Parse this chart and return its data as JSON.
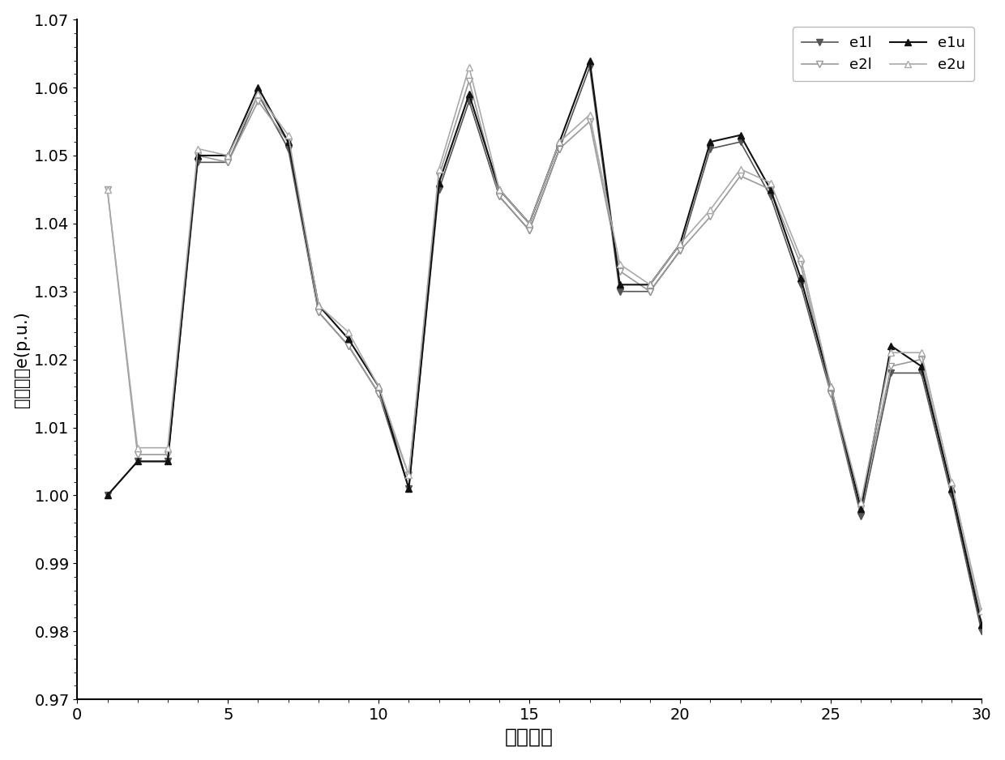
{
  "title": "",
  "xlabel": "节点编号",
  "ylabel": "电压实部e(p.u.)",
  "xlim": [
    0,
    30
  ],
  "ylim": [
    0.97,
    1.07
  ],
  "yticks": [
    0.97,
    0.98,
    0.99,
    1.0,
    1.01,
    1.02,
    1.03,
    1.04,
    1.05,
    1.06,
    1.07
  ],
  "xticks": [
    0,
    5,
    10,
    15,
    20,
    25,
    30
  ],
  "series": {
    "e1l": {
      "x": [
        1,
        2,
        3,
        4,
        5,
        6,
        7,
        8,
        9,
        10,
        11,
        12,
        13,
        14,
        15,
        16,
        17,
        18,
        19,
        20,
        21,
        22,
        23,
        24,
        25,
        26,
        27,
        28,
        29,
        30
      ],
      "y": [
        1.0,
        1.005,
        1.005,
        1.049,
        1.049,
        1.059,
        1.051,
        1.027,
        1.022,
        1.015,
        1.001,
        1.045,
        1.058,
        1.044,
        1.039,
        1.051,
        1.063,
        1.03,
        1.03,
        1.036,
        1.051,
        1.052,
        1.044,
        1.031,
        1.015,
        0.997,
        1.018,
        1.018,
        1.0,
        0.98
      ],
      "color": "#555555",
      "marker": "v",
      "markersize": 6,
      "filled": true,
      "linewidth": 1.2
    },
    "e2l": {
      "x": [
        1,
        2,
        3,
        4,
        5,
        6,
        7,
        8,
        9,
        10,
        11,
        12,
        13,
        14,
        15,
        16,
        17,
        18,
        19,
        20,
        21,
        22,
        23,
        24,
        25,
        26,
        27,
        28,
        29,
        30
      ],
      "y": [
        1.045,
        1.006,
        1.006,
        1.05,
        1.049,
        1.058,
        1.052,
        1.027,
        1.022,
        1.015,
        1.003,
        1.047,
        1.061,
        1.044,
        1.039,
        1.051,
        1.055,
        1.033,
        1.03,
        1.036,
        1.041,
        1.047,
        1.045,
        1.034,
        1.015,
        0.998,
        1.019,
        1.02,
        1.001,
        0.982
      ],
      "color": "#999999",
      "marker": "v",
      "markersize": 6,
      "filled": false,
      "linewidth": 1.2
    },
    "e1u": {
      "x": [
        1,
        2,
        3,
        4,
        5,
        6,
        7,
        8,
        9,
        10,
        11,
        12,
        13,
        14,
        15,
        16,
        17,
        18,
        19,
        20,
        21,
        22,
        23,
        24,
        25,
        26,
        27,
        28,
        29,
        30
      ],
      "y": [
        1.0,
        1.005,
        1.005,
        1.05,
        1.05,
        1.06,
        1.052,
        1.028,
        1.023,
        1.016,
        1.001,
        1.046,
        1.059,
        1.045,
        1.04,
        1.052,
        1.064,
        1.031,
        1.031,
        1.037,
        1.052,
        1.053,
        1.045,
        1.032,
        1.016,
        0.998,
        1.022,
        1.019,
        1.001,
        0.981
      ],
      "color": "#111111",
      "marker": "^",
      "markersize": 6,
      "filled": true,
      "linewidth": 1.5
    },
    "e2u": {
      "x": [
        1,
        2,
        3,
        4,
        5,
        6,
        7,
        8,
        9,
        10,
        11,
        12,
        13,
        14,
        15,
        16,
        17,
        18,
        19,
        20,
        21,
        22,
        23,
        24,
        25,
        26,
        27,
        28,
        29,
        30
      ],
      "y": [
        1.045,
        1.007,
        1.007,
        1.051,
        1.05,
        1.059,
        1.053,
        1.028,
        1.024,
        1.016,
        1.003,
        1.048,
        1.063,
        1.045,
        1.04,
        1.052,
        1.056,
        1.034,
        1.031,
        1.037,
        1.042,
        1.048,
        1.046,
        1.035,
        1.016,
        0.999,
        1.021,
        1.021,
        1.002,
        0.983
      ],
      "color": "#aaaaaa",
      "marker": "^",
      "markersize": 6,
      "filled": false,
      "linewidth": 1.2
    }
  },
  "legend_loc": "upper right",
  "background_color": "#ffffff",
  "xlabel_fontsize": 18,
  "ylabel_fontsize": 15,
  "tick_fontsize": 14
}
